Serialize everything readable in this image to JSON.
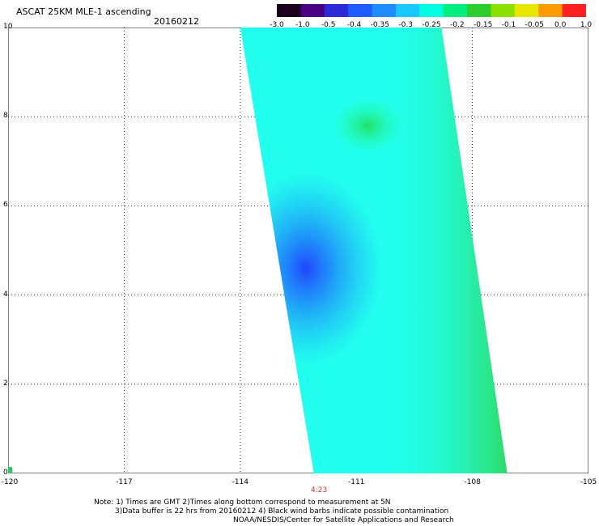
{
  "header": {
    "title": "ASCAT 25KM MLE-1 ascending",
    "date": "20160212"
  },
  "colorbar": {
    "labels": [
      "-3.0",
      "-1.0",
      "-0.5",
      "-0.4",
      "-0.35",
      "-0.3",
      "-0.25",
      "-0.2",
      "-0.15",
      "-0.1",
      "-0.05",
      "0.0",
      "1.0"
    ],
    "colors": [
      "#1a001a",
      "#4b0082",
      "#2d2bd6",
      "#1f5cff",
      "#1f8cff",
      "#18c8ff",
      "#00ffe0",
      "#00f080",
      "#2ecc2e",
      "#8ce000",
      "#e6e600",
      "#ff9a00",
      "#ff2020"
    ]
  },
  "axes": {
    "x_ticks": [
      "-120",
      "-117",
      "-114",
      "-111",
      "-108",
      "-105"
    ],
    "x_range": [
      -120,
      -105
    ],
    "y_ticks": [
      "0",
      "2",
      "4",
      "6",
      "8",
      "10"
    ],
    "y_range": [
      0,
      10
    ]
  },
  "time_label": "4:23",
  "notes": {
    "line1": "Note: 1) Times are GMT 2)Times along bottom correspond to measurement at 5N",
    "line2": "3)Data buffer is 22 hrs from 20160212 4) Black wind barbs indicate possible contamination",
    "line3": "NOAA/NESDIS/Center for Satellite Applications and Research"
  },
  "swath": {
    "corners_lonlat": [
      [
        -114.0,
        10.0
      ],
      [
        -108.8,
        10.0
      ],
      [
        -107.1,
        0.0
      ],
      [
        -112.1,
        0.0
      ]
    ],
    "dominant_color": "#22ffee",
    "regions": [
      {
        "name": "blue-patch",
        "lon": -112.3,
        "lat": 4.6,
        "color": "#1f4dff"
      },
      {
        "name": "green-band",
        "lon": -108.6,
        "lat": 6.0,
        "color": "#33dd33"
      },
      {
        "name": "green-patch",
        "lon": -110.7,
        "lat": 7.8,
        "color": "#2bdc6a"
      }
    ]
  }
}
